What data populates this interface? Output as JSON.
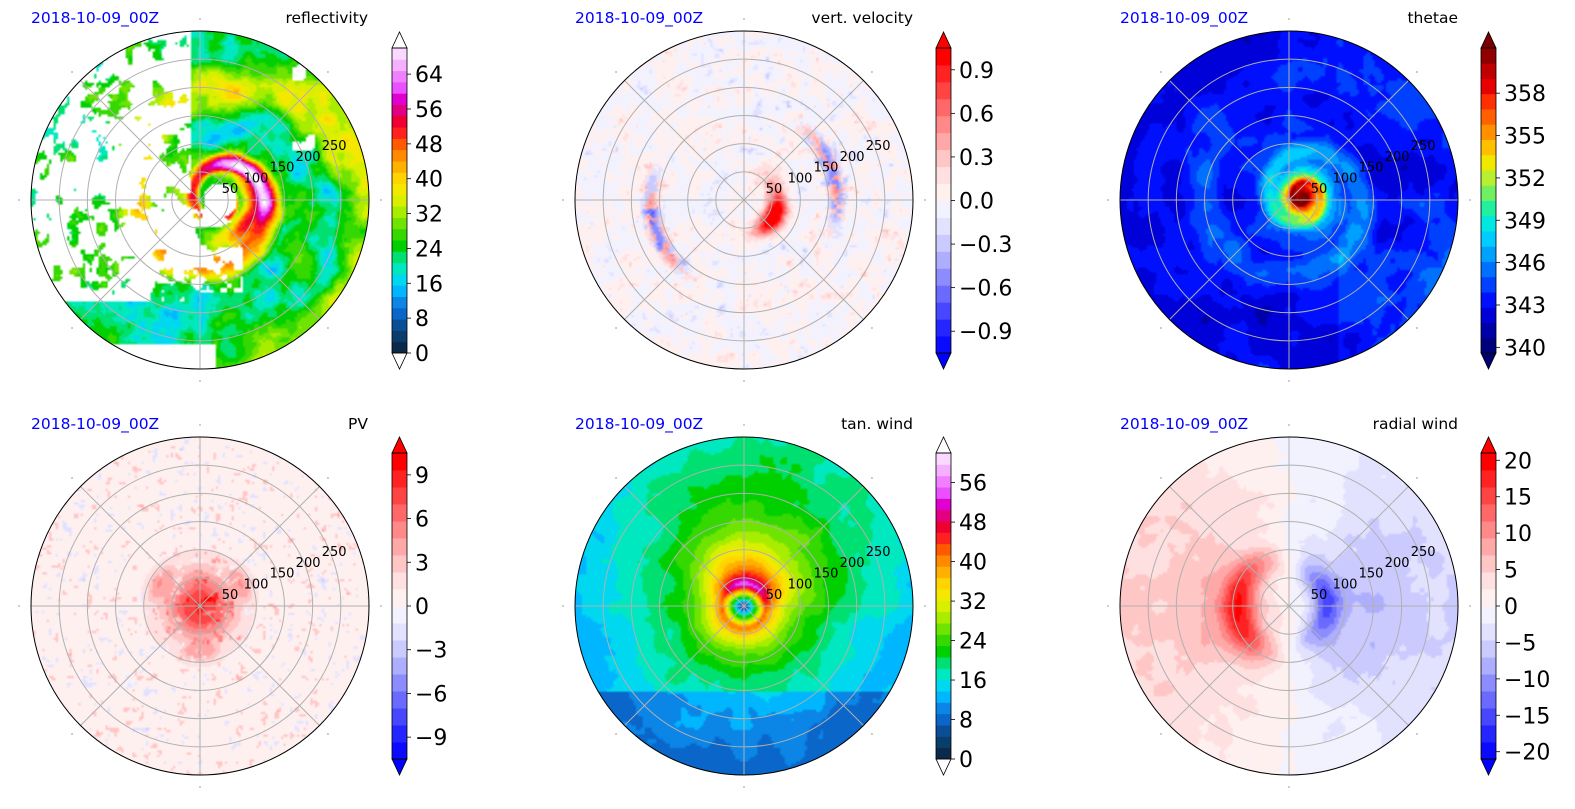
{
  "panels": [
    {
      "date": "2018-10-09_00Z",
      "title": "reflectivity",
      "colorbar": {
        "ticks": [
          "0",
          "8",
          "16",
          "24",
          "32",
          "40",
          "48",
          "56",
          "64"
        ],
        "min": 0,
        "max": 70,
        "extend": "both",
        "colors": [
          "#0b2a4a",
          "#0b3d6b",
          "#0a4f96",
          "#0a66c9",
          "#0b85e6",
          "#00b7ff",
          "#00d8f0",
          "#00e8c0",
          "#00e070",
          "#00d000",
          "#35d800",
          "#6ee400",
          "#a8ec00",
          "#d8f000",
          "#f5e800",
          "#ffd400",
          "#ffb000",
          "#ff8a00",
          "#ff5a00",
          "#ff2020",
          "#ee0030",
          "#e20080",
          "#e000d0",
          "#ea50ff",
          "#f080ff",
          "#f5b0ff",
          "#fbd8ff"
        ],
        "under": "#ffffff",
        "over": "#ffffff"
      },
      "field": "reflectivity"
    },
    {
      "date": "2018-10-09_00Z",
      "title": "vert. velocity",
      "colorbar": {
        "ticks": [
          "−0.9",
          "−0.6",
          "−0.3",
          "0.0",
          "0.3",
          "0.6",
          "0.9"
        ],
        "min": -1.05,
        "max": 1.05,
        "extend": "both",
        "colors": [
          "#0a0aff",
          "#2525ff",
          "#4747ff",
          "#6a6aff",
          "#8c8cff",
          "#aeaeff",
          "#cacaff",
          "#e2e2ff",
          "#f2f2ff",
          "#fff0f0",
          "#ffe0e0",
          "#ffc6c6",
          "#ffa8a8",
          "#ff8888",
          "#ff6868",
          "#ff4444",
          "#ff2222",
          "#ff0000"
        ],
        "under": "#0000ff",
        "over": "#ff0000"
      },
      "field": "vertical_velocity"
    },
    {
      "date": "2018-10-09_00Z",
      "title": "thetae",
      "colorbar": {
        "ticks": [
          "340",
          "343",
          "346",
          "349",
          "352",
          "355",
          "358"
        ],
        "min": 339.6,
        "max": 361.2,
        "extend": "both",
        "colors": [
          "#00007a",
          "#0000a8",
          "#0000d8",
          "#0010ff",
          "#0040ff",
          "#0070ff",
          "#00a0ff",
          "#00ccff",
          "#00e8e0",
          "#20f0a0",
          "#70f060",
          "#b8f030",
          "#f0e800",
          "#ffc000",
          "#ff9000",
          "#ff6000",
          "#ff3000",
          "#e80000",
          "#c00000",
          "#900000"
        ],
        "under": "#000070",
        "over": "#7a0000"
      },
      "field": "thetae"
    },
    {
      "date": "2018-10-09_00Z",
      "title": "PV",
      "colorbar": {
        "ticks": [
          "−9",
          "−6",
          "−3",
          "0",
          "3",
          "6",
          "9"
        ],
        "min": -10.5,
        "max": 10.5,
        "extend": "both",
        "colors": [
          "#0a0aff",
          "#2525ff",
          "#4747ff",
          "#6a6aff",
          "#8c8cff",
          "#aeaeff",
          "#cacaff",
          "#e2e2ff",
          "#f2f2ff",
          "#fff0f0",
          "#ffe0e0",
          "#ffc6c6",
          "#ffa8a8",
          "#ff8888",
          "#ff6868",
          "#ff4444",
          "#ff2222",
          "#ff0000"
        ],
        "under": "#0000ff",
        "over": "#ff0000"
      },
      "field": "pv"
    },
    {
      "date": "2018-10-09_00Z",
      "title": "tan. wind",
      "colorbar": {
        "ticks": [
          "0",
          "8",
          "16",
          "24",
          "32",
          "40",
          "48",
          "56"
        ],
        "min": 0,
        "max": 62,
        "extend": "both",
        "colors": [
          "#0b2a4a",
          "#0b3d6b",
          "#0a4f96",
          "#0a66c9",
          "#0b85e6",
          "#00b7ff",
          "#00d8f0",
          "#00e8c0",
          "#00e070",
          "#00d000",
          "#35d800",
          "#6ee400",
          "#a8ec00",
          "#d8f000",
          "#f5e800",
          "#ffd400",
          "#ffb000",
          "#ff8a00",
          "#ff5a00",
          "#ff2020",
          "#ee0030",
          "#e20080",
          "#e000d0",
          "#ea50ff",
          "#f080ff",
          "#f5b0ff",
          "#fbd8ff"
        ],
        "under": "#ffffff",
        "over": "#ffffff"
      },
      "field": "tangential_wind"
    },
    {
      "date": "2018-10-09_00Z",
      "title": "radial wind",
      "colorbar": {
        "ticks": [
          "−20",
          "−15",
          "−10",
          "−5",
          "0",
          "5",
          "10",
          "15",
          "20"
        ],
        "min": -21,
        "max": 21,
        "extend": "both",
        "colors": [
          "#0a0aff",
          "#2525ff",
          "#4747ff",
          "#6a6aff",
          "#8c8cff",
          "#aeaeff",
          "#cacaff",
          "#e2e2ff",
          "#f2f2ff",
          "#fff0f0",
          "#ffe0e0",
          "#ffc6c6",
          "#ffa8a8",
          "#ff8888",
          "#ff6868",
          "#ff4444",
          "#ff2222",
          "#ff0000"
        ],
        "under": "#0000ff",
        "over": "#ff0000"
      },
      "field": "radial_wind"
    }
  ],
  "chart_data": {
    "type": "heatmap",
    "projection": "polar",
    "radial_tick_labels": [
      "50",
      "100",
      "150",
      "200",
      "250"
    ],
    "grid": true
  }
}
